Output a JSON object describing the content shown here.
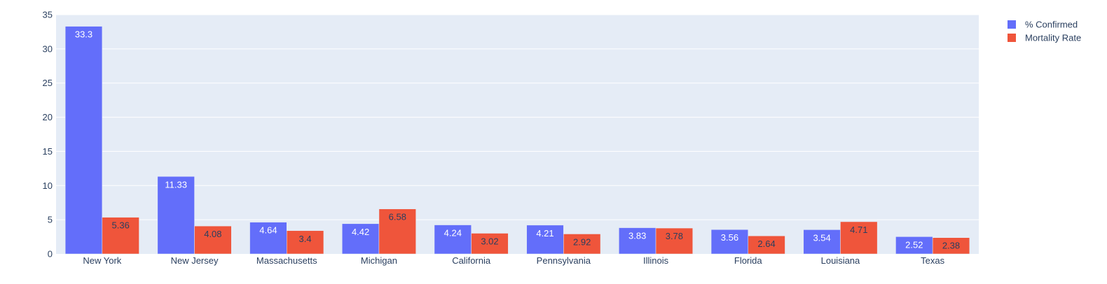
{
  "chart_data": {
    "type": "bar",
    "categories": [
      "New York",
      "New Jersey",
      "Massachusetts",
      "Michigan",
      "California",
      "Pennsylvania",
      "Illinois",
      "Florida",
      "Louisiana",
      "Texas"
    ],
    "series": [
      {
        "name": "% Confirmed",
        "color": "#636efa",
        "values": [
          33.3,
          11.33,
          4.64,
          4.42,
          4.24,
          4.21,
          3.83,
          3.56,
          3.54,
          2.52
        ]
      },
      {
        "name": "Mortality Rate",
        "color": "#ef553b",
        "values": [
          5.36,
          4.08,
          3.4,
          6.58,
          3.02,
          2.92,
          3.78,
          2.64,
          4.71,
          2.38
        ]
      }
    ],
    "ylim": [
      0,
      35
    ],
    "yticks": [
      0,
      5,
      10,
      15,
      20,
      25,
      30,
      35
    ],
    "grid": true,
    "legend_position": "top-right",
    "plot_background": "#e5ecf6"
  }
}
